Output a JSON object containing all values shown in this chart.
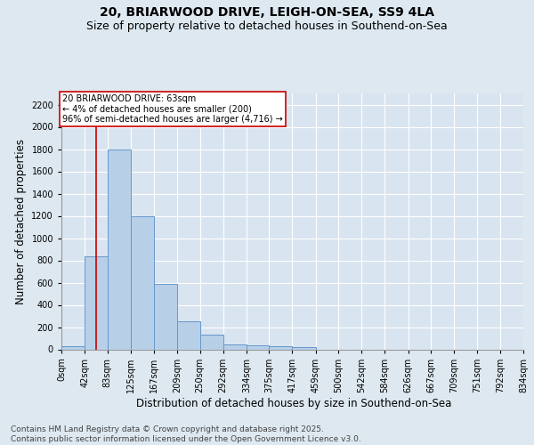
{
  "title_line1": "20, BRIARWOOD DRIVE, LEIGH-ON-SEA, SS9 4LA",
  "title_line2": "Size of property relative to detached houses in Southend-on-Sea",
  "xlabel": "Distribution of detached houses by size in Southend-on-Sea",
  "ylabel": "Number of detached properties",
  "footnote": "Contains HM Land Registry data © Crown copyright and database right 2025.\nContains public sector information licensed under the Open Government Licence v3.0.",
  "bin_edges": [
    0,
    42,
    83,
    125,
    167,
    209,
    250,
    292,
    334,
    375,
    417,
    459,
    500,
    542,
    584,
    626,
    667,
    709,
    751,
    792,
    834
  ],
  "bar_heights": [
    25,
    840,
    1800,
    1200,
    590,
    250,
    130,
    45,
    40,
    30,
    20,
    0,
    0,
    0,
    0,
    0,
    0,
    0,
    0,
    0
  ],
  "bar_color": "#b8cfe8",
  "bar_edge_color": "#6699cc",
  "property_size": 63,
  "property_label": "20 BRIARWOOD DRIVE: 63sqm",
  "annotation_line1": "← 4% of detached houses are smaller (200)",
  "annotation_line2": "96% of semi-detached houses are larger (4,716) →",
  "vline_color": "#cc0000",
  "annotation_box_edge": "#cc0000",
  "ylim": [
    0,
    2300
  ],
  "yticks": [
    0,
    200,
    400,
    600,
    800,
    1000,
    1200,
    1400,
    1600,
    1800,
    2000,
    2200
  ],
  "bg_color": "#dde8f0",
  "plot_bg_color": "#d8e4f0",
  "grid_color": "#ffffff",
  "title_fontsize": 10,
  "subtitle_fontsize": 9,
  "tick_fontsize": 7,
  "label_fontsize": 8.5,
  "footnote_fontsize": 6.5
}
